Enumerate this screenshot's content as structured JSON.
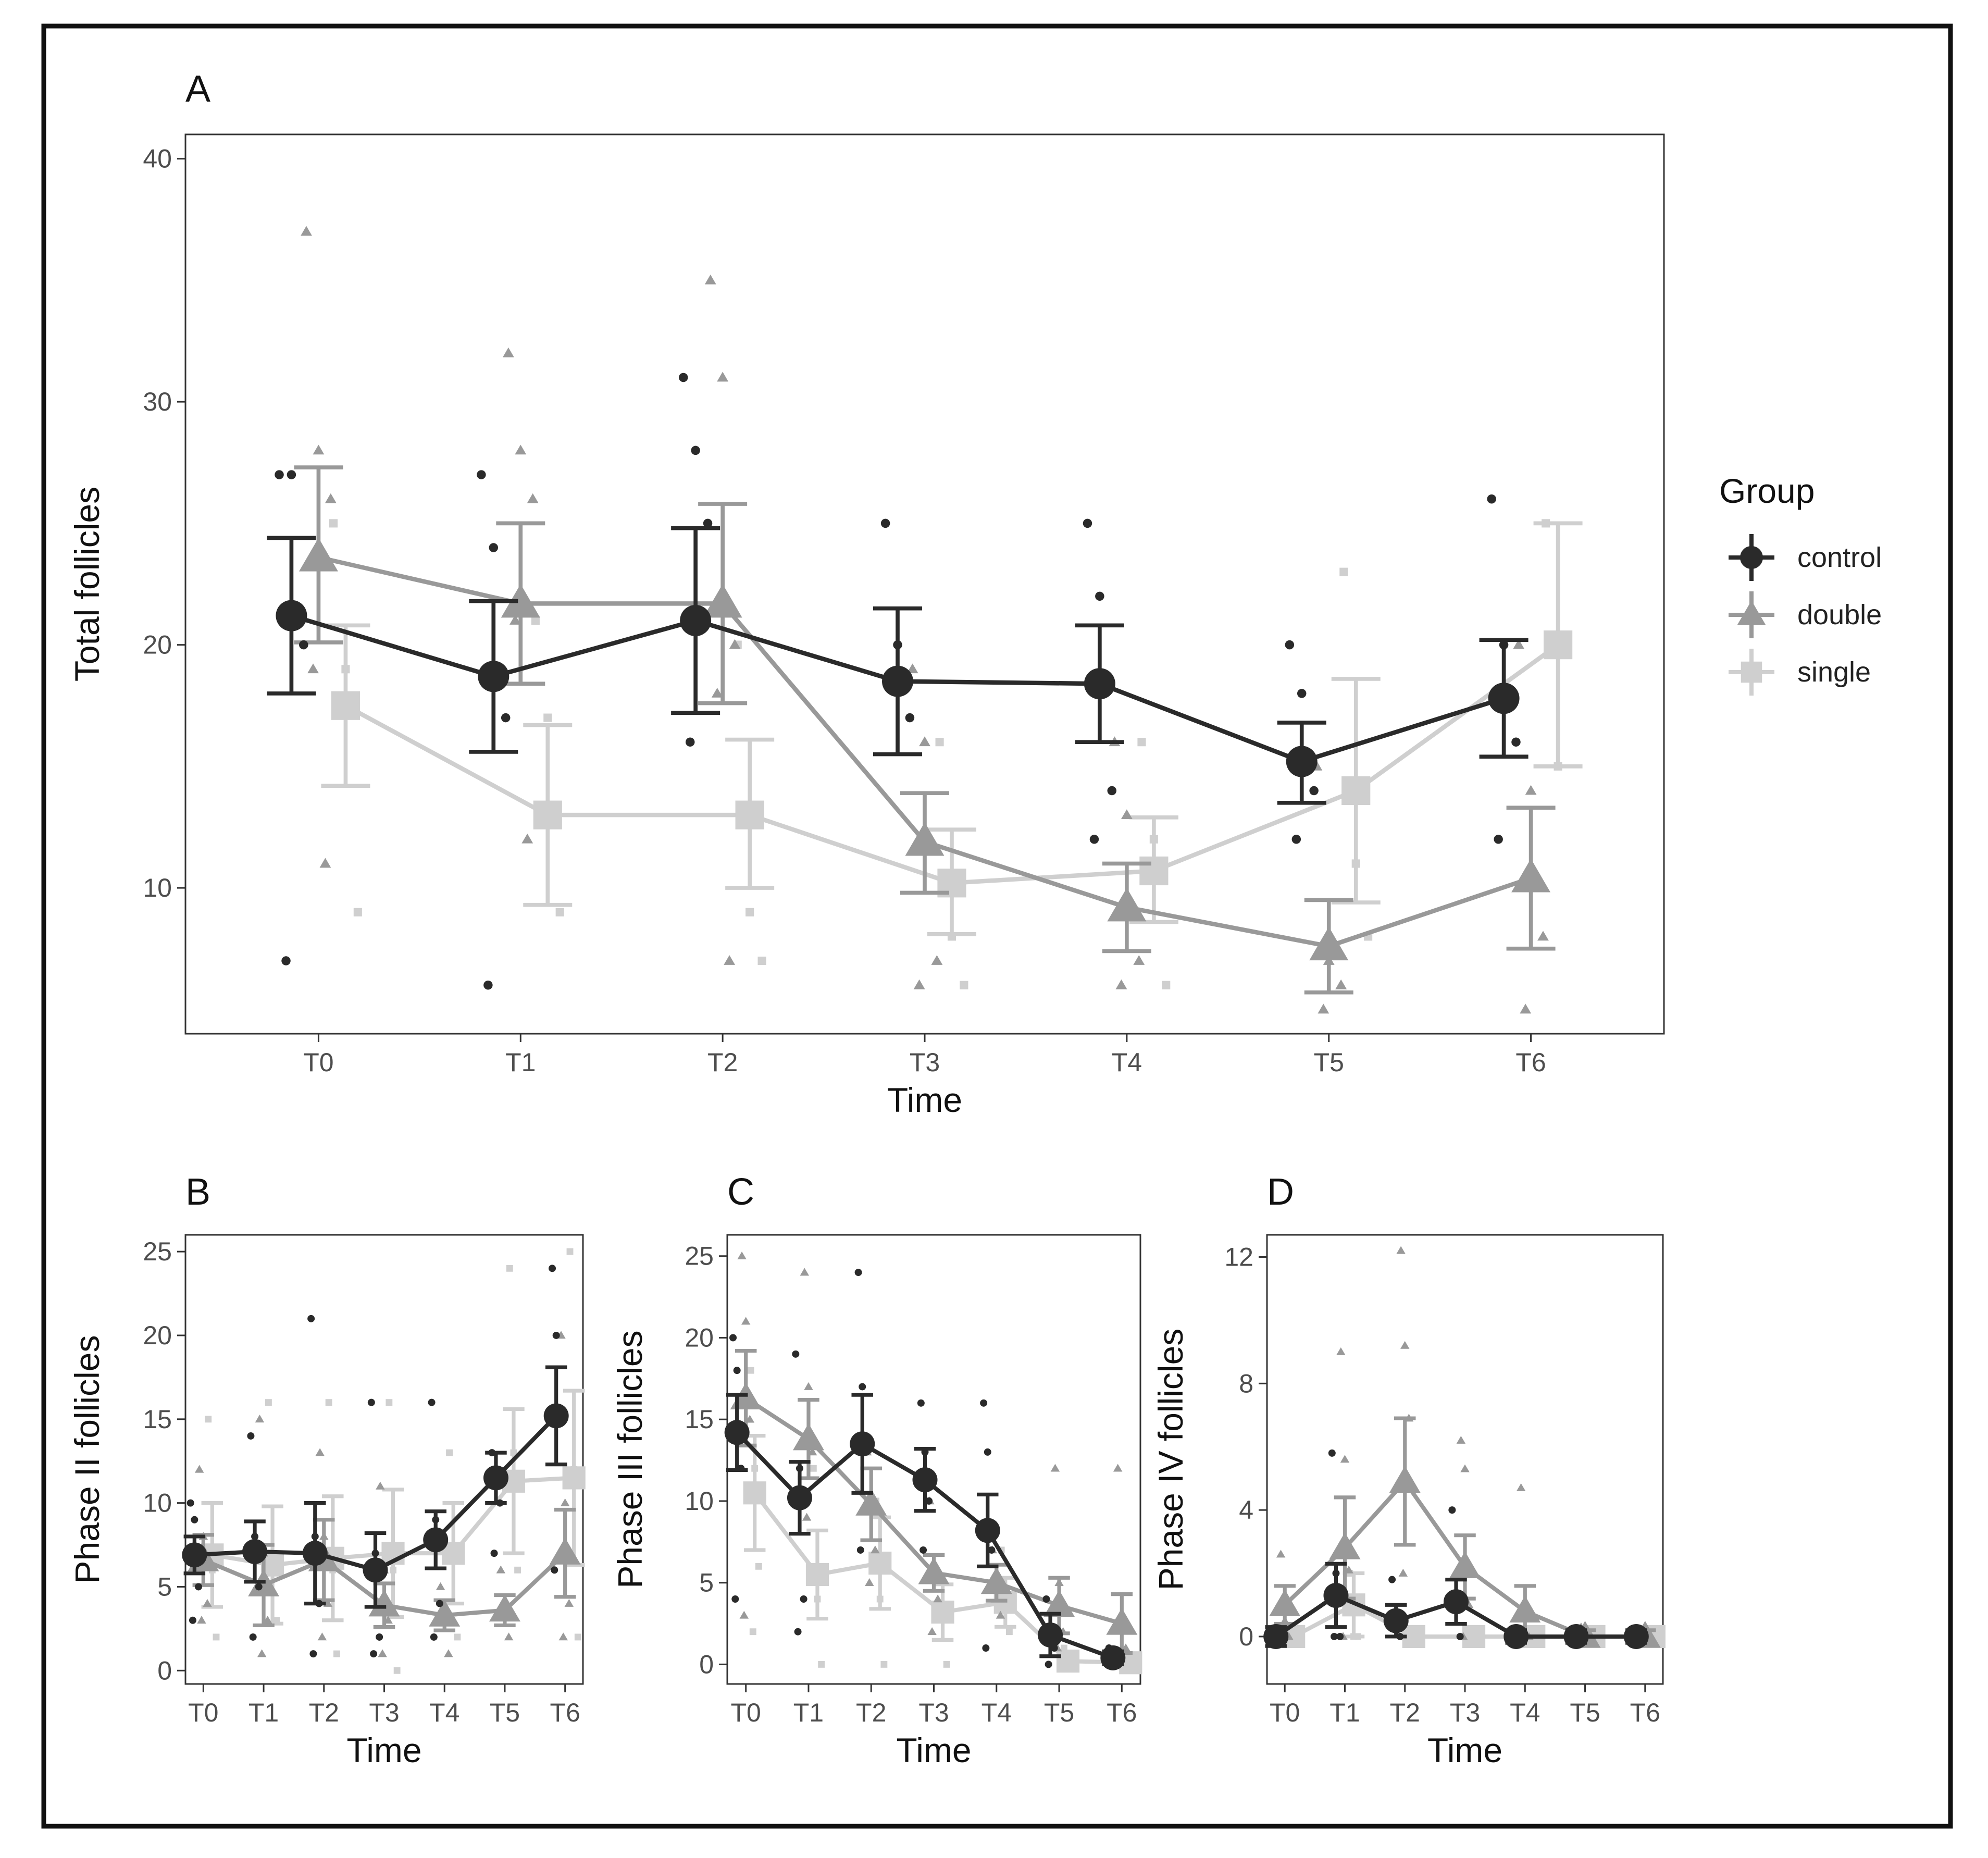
{
  "colors": {
    "control": "#2a2a2a",
    "double": "#999999",
    "single": "#cfcfcf",
    "frame": "#111111",
    "panel_border": "#333333"
  },
  "legend": {
    "title": "Group",
    "items": [
      {
        "key": "control",
        "label": "control",
        "marker": "circle"
      },
      {
        "key": "double",
        "label": "double",
        "marker": "triangle"
      },
      {
        "key": "single",
        "label": "single",
        "marker": "square"
      }
    ]
  },
  "chart_data": [
    {
      "id": "A",
      "panel_label": "A",
      "type": "line",
      "xlabel": "Time",
      "ylabel": "Total follicles",
      "categories": [
        "T0",
        "T1",
        "T2",
        "T3",
        "T4",
        "T5",
        "T6"
      ],
      "ylim": [
        4,
        41
      ],
      "yticks": [
        10,
        20,
        30,
        40
      ],
      "series": [
        {
          "name": "control",
          "values": [
            21.2,
            18.7,
            21.0,
            18.5,
            18.4,
            15.2,
            17.8
          ],
          "lower": [
            18.0,
            15.6,
            17.2,
            15.5,
            16.0,
            13.5,
            15.4
          ],
          "upper": [
            24.4,
            21.8,
            24.8,
            21.5,
            20.8,
            16.8,
            20.2
          ],
          "raw": [
            [
              27,
              27,
              20,
              7
            ],
            [
              27,
              24,
              17,
              6
            ],
            [
              31,
              28,
              25,
              16
            ],
            [
              25,
              20,
              17
            ],
            [
              25,
              22,
              14,
              12
            ],
            [
              20,
              18,
              14,
              12
            ],
            [
              26,
              20,
              16,
              12
            ]
          ]
        },
        {
          "name": "double",
          "values": [
            23.6,
            21.7,
            21.7,
            11.9,
            9.2,
            7.6,
            10.4
          ],
          "lower": [
            20.1,
            18.4,
            17.6,
            9.8,
            7.4,
            5.7,
            7.5
          ],
          "upper": [
            27.3,
            25.0,
            25.8,
            13.9,
            11.0,
            9.5,
            13.3
          ],
          "raw": [
            [
              37,
              28,
              26,
              19,
              11
            ],
            [
              32,
              28,
              26,
              21,
              12
            ],
            [
              35,
              31,
              20,
              18,
              7
            ],
            [
              19,
              16,
              7,
              6
            ],
            [
              16,
              13,
              7,
              6
            ],
            [
              15,
              7,
              6,
              5
            ],
            [
              20,
              14,
              8,
              5
            ]
          ]
        },
        {
          "name": "single",
          "values": [
            17.5,
            13.0,
            13.0,
            10.2,
            10.7,
            14.0,
            20.0
          ],
          "lower": [
            14.2,
            9.3,
            10.0,
            8.1,
            8.6,
            9.4,
            15.0
          ],
          "upper": [
            20.8,
            16.7,
            16.1,
            12.4,
            12.9,
            18.6,
            25.0
          ],
          "raw": [
            [
              25,
              19,
              9
            ],
            [
              21,
              17,
              9
            ],
            [
              20,
              9,
              7
            ],
            [
              16,
              8,
              6
            ],
            [
              16,
              12,
              6
            ],
            [
              23,
              11,
              8
            ],
            [
              25,
              15
            ]
          ]
        }
      ]
    },
    {
      "id": "B",
      "panel_label": "B",
      "type": "line",
      "xlabel": "Time",
      "ylabel": "Phase II follicles",
      "categories": [
        "T0",
        "T1",
        "T2",
        "T3",
        "T4",
        "T5",
        "T6"
      ],
      "ylim": [
        -0.8,
        26
      ],
      "yticks": [
        0,
        5,
        10,
        15,
        20,
        25
      ],
      "series": [
        {
          "name": "control",
          "values": [
            6.9,
            7.1,
            7.0,
            6.0,
            7.8,
            11.5,
            15.2
          ],
          "lower": [
            5.8,
            5.3,
            4.0,
            3.8,
            6.1,
            10.0,
            12.3
          ],
          "upper": [
            8.0,
            8.9,
            10.0,
            8.2,
            9.5,
            13.0,
            18.1
          ],
          "raw": [
            [
              10,
              9,
              5,
              3
            ],
            [
              14,
              8,
              5,
              2
            ],
            [
              21,
              8,
              4,
              1
            ],
            [
              16,
              7,
              2,
              1
            ],
            [
              16,
              9,
              4,
              2
            ],
            [
              13,
              11,
              10,
              7
            ],
            [
              24,
              20,
              15,
              6
            ]
          ]
        },
        {
          "name": "double",
          "values": [
            6.6,
            5.1,
            6.6,
            3.9,
            3.3,
            3.6,
            7.0
          ],
          "lower": [
            5.1,
            2.7,
            4.2,
            2.6,
            2.4,
            2.7,
            4.4
          ],
          "upper": [
            8.1,
            7.5,
            9.0,
            5.2,
            4.2,
            4.5,
            9.6
          ],
          "raw": [
            [
              12,
              8,
              4,
              3
            ],
            [
              15,
              7,
              3,
              1
            ],
            [
              13,
              8,
              4,
              2
            ],
            [
              11,
              6,
              3,
              1
            ],
            [
              5,
              3,
              1
            ],
            [
              6,
              4,
              2
            ],
            [
              20,
              10,
              4,
              2
            ]
          ]
        },
        {
          "name": "single",
          "values": [
            6.9,
            6.3,
            6.7,
            7.0,
            7.0,
            11.3,
            11.5
          ],
          "lower": [
            3.8,
            2.8,
            3.0,
            3.2,
            4.0,
            7.0,
            6.3
          ],
          "upper": [
            10.0,
            9.8,
            10.4,
            10.8,
            10.0,
            15.6,
            16.7
          ],
          "raw": [
            [
              15,
              6,
              2
            ],
            [
              16,
              6,
              3
            ],
            [
              16,
              6,
              1
            ],
            [
              16,
              6,
              0
            ],
            [
              13,
              7,
              2
            ],
            [
              24,
              13,
              6
            ],
            [
              25,
              12,
              2
            ]
          ]
        }
      ]
    },
    {
      "id": "C",
      "panel_label": "C",
      "type": "line",
      "xlabel": "Time",
      "ylabel": "Phase III follicles",
      "categories": [
        "T0",
        "T1",
        "T2",
        "T3",
        "T4",
        "T5",
        "T6"
      ],
      "ylim": [
        -1.2,
        26.3
      ],
      "yticks": [
        0,
        5,
        10,
        15,
        20,
        25
      ],
      "series": [
        {
          "name": "control",
          "values": [
            14.2,
            10.2,
            13.5,
            11.3,
            8.2,
            1.8,
            0.4
          ],
          "lower": [
            11.9,
            8.0,
            10.5,
            9.4,
            6.0,
            0.5,
            0.0
          ],
          "upper": [
            16.5,
            12.4,
            16.5,
            13.2,
            10.4,
            3.1,
            0.8
          ],
          "raw": [
            [
              20,
              18,
              12,
              4
            ],
            [
              19,
              12,
              4,
              2
            ],
            [
              24,
              17,
              13,
              7
            ],
            [
              16,
              13,
              10,
              7
            ],
            [
              16,
              13,
              7,
              1
            ],
            [
              4,
              2,
              1,
              0
            ],
            [
              1,
              0,
              0
            ]
          ]
        },
        {
          "name": "double",
          "values": [
            16.3,
            13.8,
            9.8,
            5.6,
            5.0,
            3.6,
            2.5
          ],
          "lower": [
            13.4,
            11.4,
            7.6,
            4.5,
            3.9,
            1.9,
            0.7
          ],
          "upper": [
            19.2,
            16.2,
            12.0,
            6.7,
            6.1,
            5.3,
            4.3
          ],
          "raw": [
            [
              25,
              21,
              15,
              3
            ],
            [
              24,
              17,
              13,
              9
            ],
            [
              13,
              10,
              7,
              5
            ],
            [
              10,
              6,
              4,
              2
            ],
            [
              7,
              5,
              3
            ],
            [
              12,
              5,
              2,
              1
            ],
            [
              12,
              3,
              1
            ]
          ]
        },
        {
          "name": "single",
          "values": [
            10.5,
            5.5,
            6.2,
            3.2,
            3.8,
            0.2,
            0.1
          ],
          "lower": [
            7.0,
            2.8,
            3.4,
            1.5,
            2.3,
            0.0,
            0.0
          ],
          "upper": [
            14.0,
            8.2,
            9.0,
            4.9,
            5.3,
            0.4,
            0.2
          ],
          "raw": [
            [
              18,
              12,
              6,
              2
            ],
            [
              12,
              4,
              0
            ],
            [
              10,
              4,
              0
            ],
            [
              5,
              3,
              0
            ],
            [
              7,
              4,
              2
            ],
            [
              1,
              0
            ],
            [
              0,
              0
            ]
          ]
        }
      ]
    },
    {
      "id": "D",
      "panel_label": "D",
      "type": "line",
      "xlabel": "Time",
      "ylabel": "Phase IV follicles",
      "categories": [
        "T0",
        "T1",
        "T2",
        "T3",
        "T4",
        "T5",
        "T6"
      ],
      "ylim": [
        -1.5,
        12.7
      ],
      "yticks": [
        0,
        4,
        8,
        12
      ],
      "series": [
        {
          "name": "control",
          "values": [
            0.0,
            1.3,
            0.5,
            1.1,
            0.0,
            0.0,
            0.0
          ],
          "lower": [
            -0.3,
            0.3,
            0.0,
            0.4,
            -0.2,
            -0.2,
            -0.2
          ],
          "upper": [
            0.3,
            2.3,
            1.0,
            1.8,
            0.2,
            0.2,
            0.2
          ],
          "raw": [
            [
              0,
              0,
              0
            ],
            [
              5.8,
              2.0,
              0,
              0
            ],
            [
              1.8,
              0.4,
              0
            ],
            [
              4.0,
              1.0,
              0
            ],
            [
              0,
              0
            ],
            [
              0,
              0
            ],
            [
              0,
              0
            ]
          ]
        },
        {
          "name": "double",
          "values": [
            1.0,
            2.8,
            4.9,
            2.2,
            0.8,
            0.0,
            0.0
          ],
          "lower": [
            0.4,
            1.2,
            2.9,
            1.2,
            0.0,
            -0.2,
            -0.2
          ],
          "upper": [
            1.6,
            4.4,
            6.9,
            3.2,
            1.6,
            0.2,
            0.2
          ],
          "raw": [
            [
              2.6,
              0.5,
              0
            ],
            [
              9.0,
              5.6,
              2.1,
              0
            ],
            [
              12.2,
              9.2,
              6.9,
              2.0
            ],
            [
              6.2,
              5.3,
              1.0,
              0
            ],
            [
              4.7,
              0,
              0
            ],
            [
              0.3,
              0
            ],
            [
              0.2,
              0
            ]
          ]
        },
        {
          "name": "single",
          "values": [
            0.0,
            1.0,
            0.0,
            0.0,
            0.0,
            0.0,
            0.0
          ],
          "lower": [
            -0.2,
            0.0,
            -0.2,
            -0.2,
            -0.2,
            -0.2,
            -0.2
          ],
          "upper": [
            0.2,
            2.0,
            0.2,
            0.2,
            0.2,
            0.2,
            0.2
          ],
          "raw": [
            [
              0,
              0
            ],
            [
              2.0,
              0,
              0
            ],
            [
              0,
              0
            ],
            [
              0,
              0
            ],
            [
              0,
              0
            ],
            [
              0,
              0
            ],
            [
              0,
              0
            ]
          ]
        }
      ]
    }
  ]
}
